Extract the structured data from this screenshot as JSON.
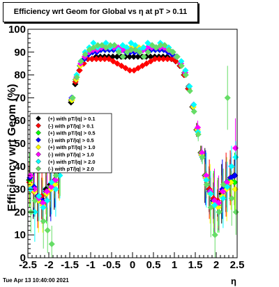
{
  "title": "Efficiency wrt Geom for Global vs   η at pT > 0.11",
  "footer": "Tue Apr 13 10:40:00 2021",
  "chart_data": {
    "type": "scatter",
    "title": "Efficiency wrt Geom for Global vs   η at pT > 0.11",
    "xlabel": "η",
    "ylabel": "Efficiency wrt Geom (%)",
    "xlim": [
      -2.5,
      2.5
    ],
    "ylim": [
      0,
      100
    ],
    "xticks": [
      "-2.5",
      "-2",
      "-1.5",
      "-1",
      "-0.5",
      "0",
      "0.5",
      "1",
      "1.5",
      "2",
      "2.5"
    ],
    "yticks": [
      "0",
      "10",
      "20",
      "30",
      "40",
      "50",
      "60",
      "70",
      "80",
      "90",
      "100"
    ],
    "legend_position": "left-middle",
    "series": [
      {
        "name": "(+) with pT/|q| > 0.1",
        "color": "#000000",
        "x": [
          -2.45,
          -2.35,
          -2.25,
          -2.15,
          -2.05,
          -1.95,
          -1.85,
          -1.75,
          -1.65,
          -1.55,
          -1.45,
          -1.35,
          -1.25,
          -1.15,
          -1.05,
          -0.95,
          -0.85,
          -0.75,
          -0.65,
          -0.55,
          -0.45,
          -0.35,
          -0.25,
          -0.15,
          -0.05,
          0.05,
          0.15,
          0.25,
          0.35,
          0.45,
          0.55,
          0.65,
          0.75,
          0.85,
          0.95,
          1.05,
          1.15,
          1.25,
          1.35,
          1.45,
          1.55,
          1.65,
          1.75,
          1.85,
          1.95,
          2.05,
          2.15,
          2.25,
          2.35,
          2.45
        ],
        "y": [
          34,
          30,
          27,
          26,
          30,
          32,
          33,
          38,
          48,
          58,
          68,
          76,
          82,
          85,
          87,
          87,
          88,
          88,
          88,
          88,
          88,
          88,
          88,
          88,
          88,
          88,
          88,
          88,
          88,
          88,
          88,
          88,
          88,
          88,
          87,
          86,
          84,
          80,
          74,
          66,
          56,
          46,
          36,
          30,
          25,
          24,
          28,
          31,
          34,
          36
        ]
      },
      {
        "name": "(-) with pT/|q| > 0.1",
        "color": "#ff0000",
        "x": [
          -2.45,
          -2.35,
          -2.25,
          -2.15,
          -2.05,
          -1.95,
          -1.85,
          -1.75,
          -1.65,
          -1.55,
          -1.45,
          -1.35,
          -1.25,
          -1.15,
          -1.05,
          -0.95,
          -0.85,
          -0.75,
          -0.65,
          -0.55,
          -0.45,
          -0.35,
          -0.25,
          -0.15,
          -0.05,
          0.05,
          0.15,
          0.25,
          0.35,
          0.45,
          0.55,
          0.65,
          0.75,
          0.85,
          0.95,
          1.05,
          1.15,
          1.25,
          1.35,
          1.45,
          1.55,
          1.65,
          1.75,
          1.85,
          1.95,
          2.05,
          2.15,
          2.25,
          2.35,
          2.45
        ],
        "y": [
          33,
          29,
          27,
          27,
          29,
          31,
          34,
          39,
          49,
          59,
          69,
          77,
          82,
          85,
          87,
          87,
          87,
          87,
          87,
          87,
          86,
          85,
          84,
          83,
          82,
          82,
          83,
          84,
          85,
          86,
          87,
          87,
          87,
          87,
          87,
          86,
          84,
          80,
          74,
          66,
          56,
          46,
          36,
          30,
          26,
          25,
          29,
          32,
          35,
          33
        ]
      },
      {
        "name": "(+) with pT/|q| > 0.5",
        "color": "#00ff00",
        "x": [
          -2.45,
          -2.35,
          -2.25,
          -2.15,
          -2.05,
          -1.95,
          -1.85,
          -1.75,
          -1.65,
          -1.55,
          -1.45,
          -1.35,
          -1.25,
          -1.15,
          -1.05,
          -0.95,
          -0.85,
          -0.75,
          -0.65,
          -0.55,
          -0.45,
          -0.35,
          -0.25,
          -0.15,
          -0.05,
          0.05,
          0.15,
          0.25,
          0.35,
          0.45,
          0.55,
          0.65,
          0.75,
          0.85,
          0.95,
          1.05,
          1.15,
          1.25,
          1.35,
          1.45,
          1.55,
          1.65,
          1.75,
          1.85,
          1.95,
          2.05,
          2.15,
          2.25,
          2.35,
          2.45
        ],
        "y": [
          34,
          31,
          26,
          24,
          28,
          31,
          33,
          39,
          49,
          59,
          69,
          78,
          84,
          87,
          89,
          90,
          91,
          91,
          91,
          91,
          91,
          91,
          91,
          91,
          91,
          91,
          91,
          91,
          91,
          91,
          91,
          91,
          91,
          91,
          90,
          88,
          85,
          81,
          75,
          66,
          56,
          46,
          36,
          29,
          24,
          23,
          27,
          31,
          34,
          33
        ]
      },
      {
        "name": "(-) with pT/|q| > 0.5",
        "color": "#0000ff",
        "x": [
          -2.45,
          -2.35,
          -2.25,
          -2.15,
          -2.05,
          -1.95,
          -1.85,
          -1.75,
          -1.65,
          -1.55,
          -1.45,
          -1.35,
          -1.25,
          -1.15,
          -1.05,
          -0.95,
          -0.85,
          -0.75,
          -0.65,
          -0.55,
          -0.45,
          -0.35,
          -0.25,
          -0.15,
          -0.05,
          0.05,
          0.15,
          0.25,
          0.35,
          0.45,
          0.55,
          0.65,
          0.75,
          0.85,
          0.95,
          1.05,
          1.15,
          1.25,
          1.35,
          1.45,
          1.55,
          1.65,
          1.75,
          1.85,
          1.95,
          2.05,
          2.15,
          2.25,
          2.35,
          2.45
        ],
        "y": [
          35,
          31,
          27,
          25,
          29,
          30,
          34,
          40,
          50,
          60,
          70,
          78,
          84,
          87,
          89,
          90,
          90,
          91,
          91,
          91,
          91,
          91,
          91,
          90,
          90,
          90,
          90,
          91,
          91,
          91,
          91,
          91,
          91,
          90,
          89,
          88,
          85,
          81,
          75,
          66,
          56,
          45,
          35,
          29,
          25,
          24,
          30,
          33,
          35,
          36
        ]
      },
      {
        "name": "(+) with pT/|q| > 1.0",
        "color": "#ffff00",
        "x": [
          -2.45,
          -2.35,
          -2.25,
          -2.15,
          -2.05,
          -1.95,
          -1.85,
          -1.75,
          -1.65,
          -1.55,
          -1.45,
          -1.35,
          -1.25,
          -1.15,
          -1.05,
          -0.95,
          -0.85,
          -0.75,
          -0.65,
          -0.55,
          -0.45,
          -0.35,
          -0.25,
          -0.15,
          -0.05,
          0.05,
          0.15,
          0.25,
          0.35,
          0.45,
          0.55,
          0.65,
          0.75,
          0.85,
          0.95,
          1.05,
          1.15,
          1.25,
          1.35,
          1.45,
          1.55,
          1.65,
          1.75,
          1.85,
          1.95,
          2.05,
          2.15,
          2.25,
          2.35,
          2.45
        ],
        "y": [
          32,
          29,
          25,
          23,
          28,
          30,
          32,
          38,
          48,
          58,
          69,
          78,
          84,
          88,
          90,
          91,
          91,
          92,
          92,
          92,
          92,
          92,
          92,
          92,
          92,
          92,
          92,
          92,
          92,
          92,
          92,
          92,
          92,
          91,
          90,
          88,
          85,
          81,
          75,
          66,
          56,
          45,
          35,
          28,
          24,
          22,
          27,
          30,
          33,
          30
        ]
      },
      {
        "name": "(-) with pT/|q| > 1.0",
        "color": "#ff00ff",
        "x": [
          -2.45,
          -2.35,
          -2.25,
          -2.15,
          -2.05,
          -1.95,
          -1.85,
          -1.75,
          -1.65,
          -1.55,
          -1.45,
          -1.35,
          -1.25,
          -1.15,
          -1.05,
          -0.95,
          -0.85,
          -0.75,
          -0.65,
          -0.55,
          -0.45,
          -0.35,
          -0.25,
          -0.15,
          -0.05,
          0.05,
          0.15,
          0.25,
          0.35,
          0.45,
          0.55,
          0.65,
          0.75,
          0.85,
          0.95,
          1.05,
          1.15,
          1.25,
          1.35,
          1.45,
          1.55,
          1.65,
          1.75,
          1.85,
          1.95,
          2.05,
          2.15,
          2.25,
          2.35,
          2.45
        ],
        "y": [
          36,
          30,
          26,
          24,
          29,
          31,
          34,
          40,
          50,
          60,
          70,
          79,
          85,
          88,
          90,
          91,
          91,
          92,
          92,
          92,
          92,
          92,
          91,
          91,
          91,
          91,
          91,
          91,
          92,
          92,
          92,
          92,
          92,
          91,
          90,
          88,
          85,
          81,
          75,
          67,
          57,
          46,
          36,
          29,
          25,
          24,
          29,
          33,
          40,
          48
        ]
      },
      {
        "name": "(+) with pT/|q| > 2.0",
        "color": "#00ffff",
        "x": [
          -2.45,
          -2.35,
          -2.25,
          -2.15,
          -2.05,
          -1.95,
          -1.85,
          -1.75,
          -1.65,
          -1.55,
          -1.45,
          -1.35,
          -1.25,
          -1.15,
          -1.05,
          -0.95,
          -0.85,
          -0.75,
          -0.65,
          -0.55,
          -0.45,
          -0.35,
          -0.25,
          -0.15,
          -0.05,
          0.05,
          0.15,
          0.25,
          0.35,
          0.45,
          0.55,
          0.65,
          0.75,
          0.85,
          0.95,
          1.05,
          1.15,
          1.25,
          1.35,
          1.45,
          1.55,
          1.65,
          1.75,
          1.85,
          1.95,
          2.05,
          2.15,
          2.25,
          2.35,
          2.45
        ],
        "y": [
          30,
          20,
          27,
          22,
          25,
          33,
          30,
          36,
          47,
          58,
          70,
          80,
          86,
          90,
          92,
          94,
          92,
          93,
          94,
          92,
          93,
          91,
          93,
          92,
          94,
          93,
          91,
          92,
          94,
          93,
          92,
          94,
          93,
          92,
          90,
          88,
          86,
          82,
          75,
          67,
          55,
          44,
          34,
          28,
          23,
          20,
          26,
          31,
          40,
          44
        ]
      },
      {
        "name": "(-) with pT/|q| > 2.0",
        "color": "#66dd66",
        "x": [
          -2.45,
          -2.35,
          -2.25,
          -2.15,
          -2.05,
          -1.95,
          -1.85,
          -1.75,
          -1.65,
          -1.55,
          -1.45,
          -1.35,
          -1.25,
          -1.15,
          -1.05,
          -0.95,
          -0.85,
          -0.75,
          -0.65,
          -0.55,
          -0.45,
          -0.35,
          -0.25,
          -0.15,
          -0.05,
          0.05,
          0.15,
          0.25,
          0.35,
          0.45,
          0.55,
          0.65,
          0.75,
          0.85,
          0.95,
          1.05,
          1.15,
          1.25,
          1.35,
          1.45,
          1.55,
          1.65,
          1.75,
          1.85,
          1.95,
          2.05,
          2.15,
          2.25,
          2.35,
          2.45
        ],
        "y": [
          20,
          25,
          38,
          16,
          12,
          6,
          36,
          40,
          50,
          60,
          70,
          79,
          86,
          89,
          91,
          92,
          93,
          93,
          92,
          93,
          93,
          90,
          88,
          90,
          91,
          91,
          90,
          88,
          90,
          93,
          92,
          93,
          93,
          91,
          90,
          88,
          84,
          80,
          73,
          64,
          54,
          44,
          32,
          22,
          10,
          20,
          32,
          70,
          26,
          20
        ]
      }
    ]
  }
}
